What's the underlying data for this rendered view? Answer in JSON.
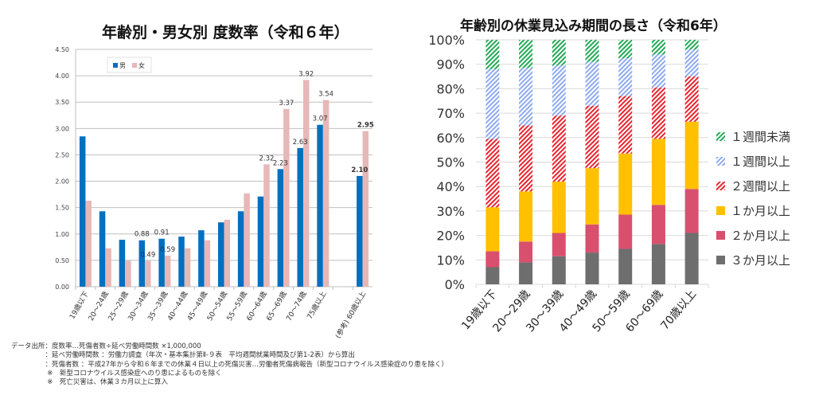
{
  "chart_data": [
    {
      "type": "bar",
      "title": "年齢別・男女別 度数率（令和６年）",
      "categories": [
        "19歳以下",
        "20～24歳",
        "25～29歳",
        "30～34歳",
        "35～39歳",
        "40～44歳",
        "45～49歳",
        "50～54歳",
        "55～59歳",
        "60～64歳",
        "65～69歳",
        "70～74歳",
        "75歳以上",
        "",
        "(参考) 60歳以上"
      ],
      "series": [
        {
          "name": "男",
          "color": "#0070c0",
          "values": [
            2.85,
            1.43,
            0.89,
            0.88,
            0.91,
            0.95,
            1.07,
            1.22,
            1.43,
            1.71,
            2.23,
            2.63,
            3.07,
            null,
            2.1
          ]
        },
        {
          "name": "女",
          "color": "#e6b8b7",
          "values": [
            1.63,
            0.73,
            0.49,
            0.49,
            0.59,
            0.73,
            0.88,
            1.27,
            1.77,
            2.32,
            3.37,
            3.92,
            3.54,
            null,
            2.95
          ]
        }
      ],
      "data_labels": [
        {
          "series": 0,
          "index": 3,
          "text": "0.88"
        },
        {
          "series": 1,
          "index": 3,
          "text": "0.49"
        },
        {
          "series": 0,
          "index": 4,
          "text": "0.91"
        },
        {
          "series": 1,
          "index": 4,
          "text": "0.59"
        },
        {
          "series": 1,
          "index": 9,
          "text": "2.32"
        },
        {
          "series": 0,
          "index": 10,
          "text": "2.23"
        },
        {
          "series": 1,
          "index": 10,
          "text": "3.37"
        },
        {
          "series": 0,
          "index": 11,
          "text": "2.63"
        },
        {
          "series": 1,
          "index": 11,
          "text": "3.92"
        },
        {
          "series": 0,
          "index": 12,
          "text": "3.07"
        },
        {
          "series": 1,
          "index": 12,
          "text": "3.54"
        },
        {
          "series": 0,
          "index": 14,
          "text": "2.10",
          "bold": true
        },
        {
          "series": 1,
          "index": 14,
          "text": "2.95",
          "bold": true
        }
      ],
      "ylim": [
        0,
        4.5
      ],
      "yticks": [
        "0.00",
        "0.50",
        "1.00",
        "1.50",
        "2.00",
        "2.50",
        "3.00",
        "3.50",
        "4.00",
        "4.50"
      ],
      "grid": true,
      "legend": "top-left"
    },
    {
      "type": "bar",
      "stacked": true,
      "title": "年齢別の休業見込み期間の長さ（令和6年）",
      "categories": [
        "19歳以下",
        "20～29歳",
        "30～39歳",
        "40～49歳",
        "50～59歳",
        "60～69歳",
        "70歳以上"
      ],
      "series": [
        {
          "name": "３か月以上",
          "color": "#6e6e6e",
          "pattern": "solid",
          "values": [
            7,
            9,
            11.5,
            13,
            14.5,
            16.5,
            21
          ]
        },
        {
          "name": "２か月以上",
          "color": "#d9506e",
          "pattern": "solid",
          "values": [
            6.5,
            8.5,
            9.5,
            11.5,
            14,
            16,
            18
          ]
        },
        {
          "name": "１か月以上",
          "color": "#ffc000",
          "pattern": "solid",
          "values": [
            18,
            20.5,
            21,
            23,
            25,
            27,
            27.5
          ]
        },
        {
          "name": "２週間以上",
          "color": "#e8242e",
          "pattern": "hatch",
          "values": [
            28,
            27,
            27,
            25.5,
            23.5,
            21,
            18.5
          ]
        },
        {
          "name": "１週間以上",
          "color": "#8eaaf0",
          "pattern": "hatch",
          "values": [
            28.5,
            23.5,
            20.5,
            18,
            15.5,
            13.5,
            11
          ]
        },
        {
          "name": "１週間未満",
          "color": "#22aa55",
          "pattern": "hatch",
          "values": [
            12,
            11.5,
            10.5,
            9,
            7.5,
            6,
            4
          ]
        }
      ],
      "ylim": [
        0,
        100
      ],
      "yticks": [
        "0%",
        "10%",
        "20%",
        "30%",
        "40%",
        "50%",
        "60%",
        "70%",
        "80%",
        "90%",
        "100%"
      ],
      "grid": true,
      "legend": "right"
    }
  ],
  "notes": [
    "データ出所：度数率…死傷者数÷延べ労働時間数 ×1,000,000",
    "　　　　　：延べ労働時間数 ：労働力調査（年次・基本集計第Ⅱ-９表　平均週間就業時間及び第1-2表）から算出",
    "　　　　　：死傷者数 ：平成27年から令和６年までの休業４日以上の死傷災害…労働者死傷病報告（新型コロナウイルス感染症のり患を除く）",
    "　　　　　 ※　新型コロナウイルス感染症へのり患によるものを除く",
    "　　　　　 ※　死亡災害は、休業３カ月以上に算入"
  ]
}
